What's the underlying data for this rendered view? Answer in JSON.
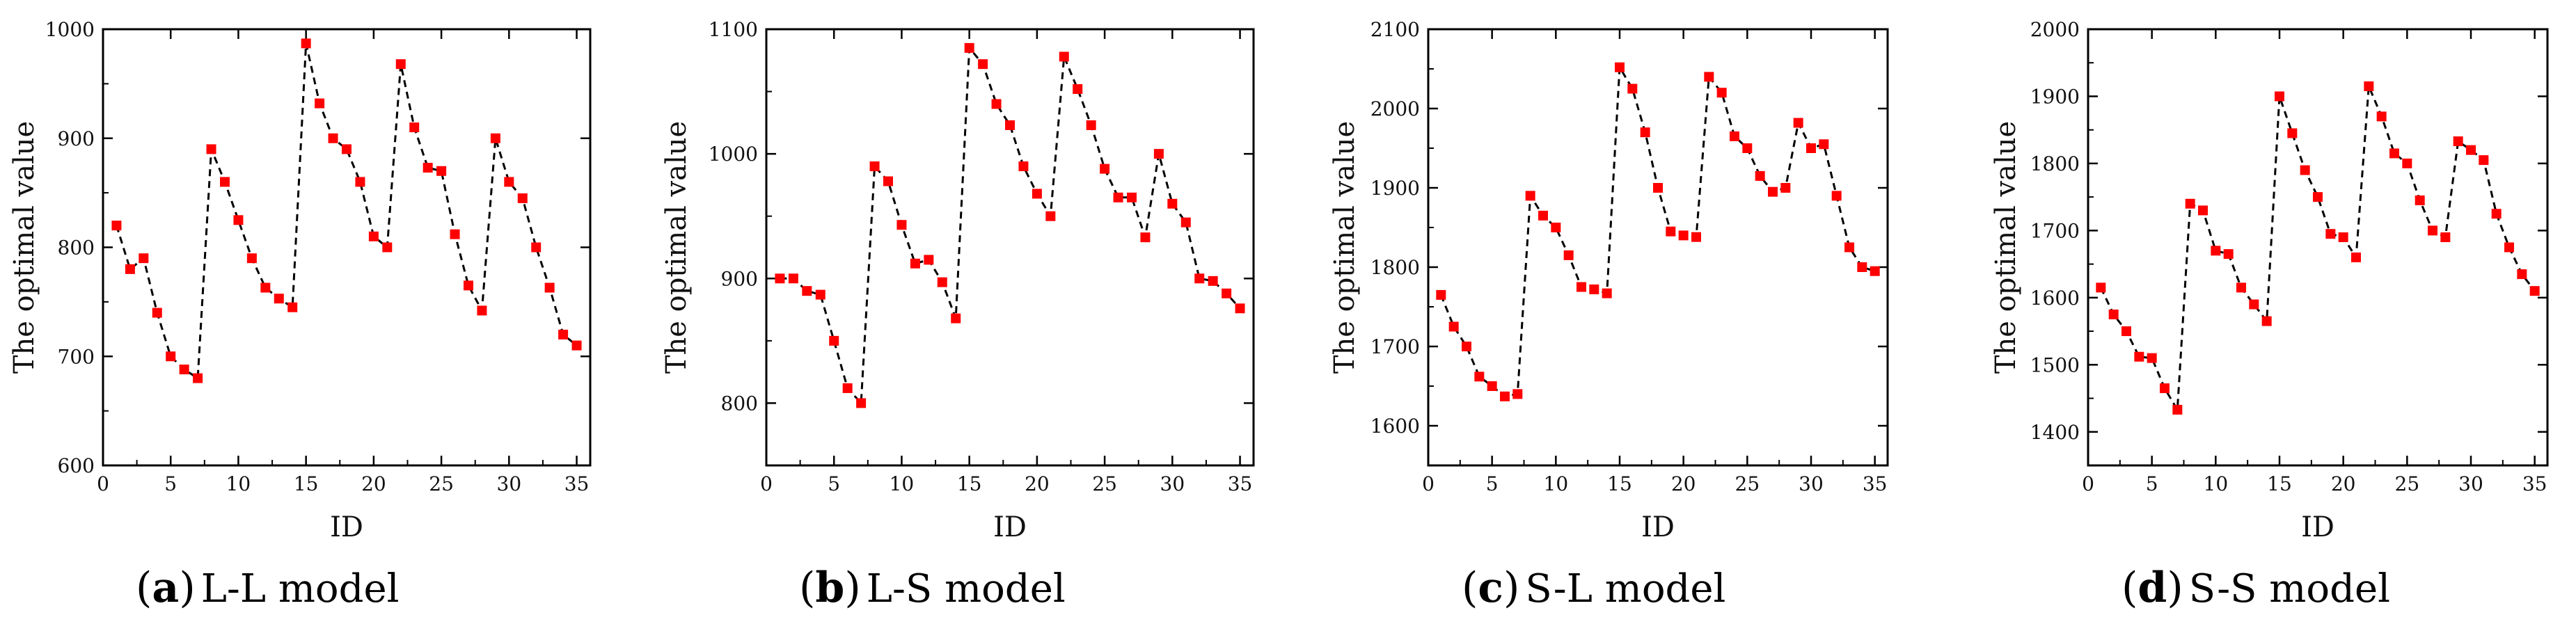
{
  "chart_data": [
    {
      "type": "line",
      "panel_letter": "a",
      "caption": "L-L model",
      "xlabel": "ID",
      "ylabel": "The optimal value",
      "xlim": [
        0,
        36
      ],
      "ylim": [
        600,
        1000
      ],
      "xticks": [
        0,
        5,
        10,
        15,
        20,
        25,
        30,
        35
      ],
      "yticks": [
        600,
        700,
        800,
        900,
        1000
      ],
      "x": [
        1,
        2,
        3,
        4,
        5,
        6,
        7,
        8,
        9,
        10,
        11,
        12,
        13,
        14,
        15,
        16,
        17,
        18,
        19,
        20,
        21,
        22,
        23,
        24,
        25,
        26,
        27,
        28,
        29,
        30,
        31,
        32,
        33,
        34,
        35
      ],
      "y": [
        820,
        780,
        790,
        740,
        700,
        688,
        680,
        890,
        860,
        825,
        790,
        763,
        753,
        745,
        987,
        932,
        900,
        890,
        860,
        810,
        800,
        968,
        910,
        873,
        870,
        812,
        765,
        742,
        900,
        860,
        845,
        800,
        763,
        720,
        710
      ],
      "line_style": "dashed",
      "line_color": "#000000",
      "marker": "square",
      "marker_color": "#ff0000"
    },
    {
      "type": "line",
      "panel_letter": "b",
      "caption": "L-S model",
      "xlabel": "ID",
      "ylabel": "The optimal value",
      "xlim": [
        0,
        36
      ],
      "ylim": [
        750,
        1100
      ],
      "xticks": [
        0,
        5,
        10,
        15,
        20,
        25,
        30,
        35
      ],
      "yticks": [
        800,
        900,
        1000,
        1100
      ],
      "x": [
        1,
        2,
        3,
        4,
        5,
        6,
        7,
        8,
        9,
        10,
        11,
        12,
        13,
        14,
        15,
        16,
        17,
        18,
        19,
        20,
        21,
        22,
        23,
        24,
        25,
        26,
        27,
        28,
        29,
        30,
        31,
        32,
        33,
        34,
        35
      ],
      "y": [
        900,
        900,
        890,
        887,
        850,
        812,
        800,
        990,
        978,
        943,
        912,
        915,
        897,
        868,
        1085,
        1072,
        1040,
        1023,
        990,
        968,
        950,
        1078,
        1052,
        1023,
        988,
        965,
        965,
        933,
        1000,
        960,
        945,
        900,
        898,
        888,
        876
      ],
      "line_style": "dashed",
      "line_color": "#000000",
      "marker": "square",
      "marker_color": "#ff0000"
    },
    {
      "type": "line",
      "panel_letter": "c",
      "caption": "S-L model",
      "xlabel": "ID",
      "ylabel": "The optimal value",
      "xlim": [
        0,
        36
      ],
      "ylim": [
        1550,
        2100
      ],
      "xticks": [
        0,
        5,
        10,
        15,
        20,
        25,
        30,
        35
      ],
      "yticks": [
        1600,
        1700,
        1800,
        1900,
        2000,
        2100
      ],
      "x": [
        1,
        2,
        3,
        4,
        5,
        6,
        7,
        8,
        9,
        10,
        11,
        12,
        13,
        14,
        15,
        16,
        17,
        18,
        19,
        20,
        21,
        22,
        23,
        24,
        25,
        26,
        27,
        28,
        29,
        30,
        31,
        32,
        33,
        34,
        35
      ],
      "y": [
        1765,
        1725,
        1700,
        1662,
        1650,
        1637,
        1640,
        1890,
        1865,
        1850,
        1815,
        1775,
        1772,
        1767,
        2052,
        2025,
        1970,
        1900,
        1845,
        1840,
        1838,
        2040,
        2020,
        1965,
        1950,
        1915,
        1895,
        1900,
        1982,
        1950,
        1955,
        1890,
        1825,
        1800,
        1795
      ],
      "line_style": "dashed",
      "line_color": "#000000",
      "marker": "square",
      "marker_color": "#ff0000"
    },
    {
      "type": "line",
      "panel_letter": "d",
      "caption": "S-S model",
      "xlabel": "ID",
      "ylabel": "The optimal value",
      "xlim": [
        0,
        36
      ],
      "ylim": [
        1350,
        2000
      ],
      "xticks": [
        0,
        5,
        10,
        15,
        20,
        25,
        30,
        35
      ],
      "yticks": [
        1400,
        1500,
        1600,
        1700,
        1800,
        1900,
        2000
      ],
      "x": [
        1,
        2,
        3,
        4,
        5,
        6,
        7,
        8,
        9,
        10,
        11,
        12,
        13,
        14,
        15,
        16,
        17,
        18,
        19,
        20,
        21,
        22,
        23,
        24,
        25,
        26,
        27,
        28,
        29,
        30,
        31,
        32,
        33,
        34,
        35
      ],
      "y": [
        1615,
        1575,
        1550,
        1512,
        1510,
        1465,
        1433,
        1740,
        1730,
        1670,
        1665,
        1615,
        1590,
        1565,
        1900,
        1845,
        1790,
        1750,
        1695,
        1690,
        1660,
        1915,
        1870,
        1815,
        1800,
        1745,
        1700,
        1690,
        1833,
        1820,
        1805,
        1725,
        1675,
        1635,
        1610
      ],
      "line_style": "dashed",
      "line_color": "#000000",
      "marker": "square",
      "marker_color": "#ff0000"
    }
  ]
}
